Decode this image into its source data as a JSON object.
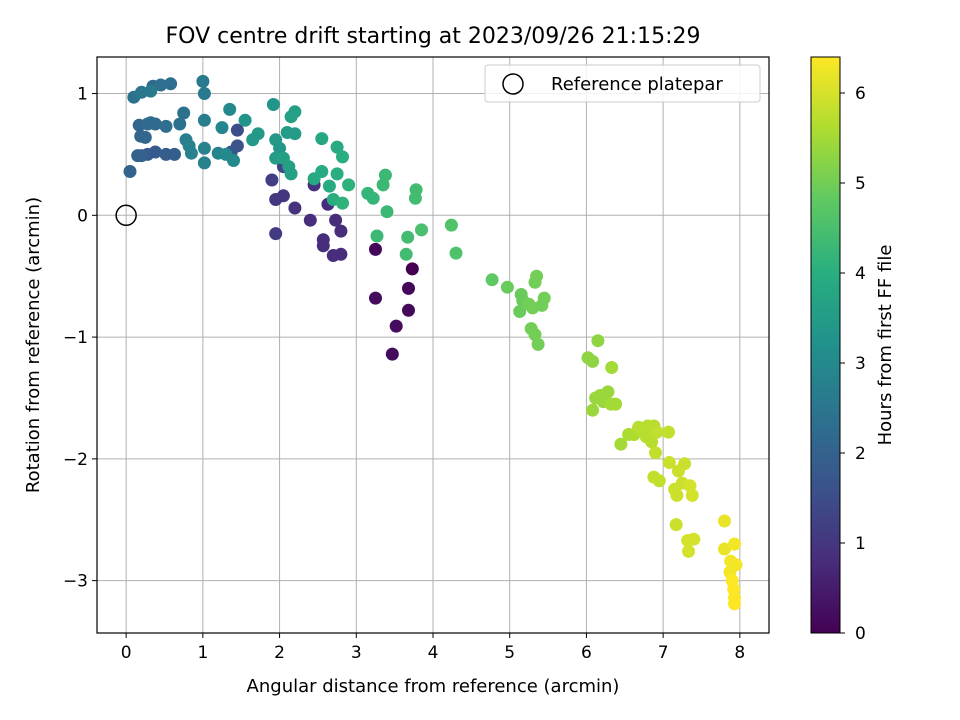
{
  "chart_data": {
    "type": "scatter",
    "title": "FOV centre drift starting at 2023/09/26 21:15:29",
    "xlabel": "Angular distance from reference (arcmin)",
    "ylabel": "Rotation from reference (arcmin)",
    "xlim": [
      -0.38,
      8.38
    ],
    "ylim": [
      -3.43,
      1.3
    ],
    "xticks": [
      0,
      1,
      2,
      3,
      4,
      5,
      6,
      7,
      8
    ],
    "yticks": [
      1,
      0,
      -1,
      -2,
      -3
    ],
    "ytick_labels": [
      "1",
      "0",
      "−1",
      "−2",
      "−3"
    ],
    "grid": true,
    "legend": {
      "position": "top-right",
      "entries": [
        {
          "label": "Reference platepar",
          "marker": "open-circle"
        }
      ]
    },
    "reference_point": {
      "x": 0,
      "y": 0
    },
    "colorbar": {
      "label": "Hours from first FF file",
      "range": [
        0,
        6.4
      ],
      "ticks": [
        0,
        1,
        2,
        3,
        4,
        5,
        6
      ],
      "colormap": "viridis"
    },
    "series": [
      {
        "color_by": "hours",
        "points": [
          [
            3.73,
            -0.44,
            0.0
          ],
          [
            3.68,
            -0.6,
            0.1
          ],
          [
            3.68,
            -0.78,
            0.15
          ],
          [
            3.25,
            -0.28,
            0.1
          ],
          [
            3.25,
            -0.68,
            0.2
          ],
          [
            3.52,
            -0.91,
            0.2
          ],
          [
            3.47,
            -1.14,
            0.2
          ],
          [
            2.8,
            -0.13,
            0.8
          ],
          [
            2.8,
            -0.32,
            0.8
          ],
          [
            2.7,
            -0.33,
            0.8
          ],
          [
            2.73,
            -0.04,
            0.8
          ],
          [
            2.57,
            -0.2,
            0.8
          ],
          [
            2.57,
            -0.25,
            0.8
          ],
          [
            2.63,
            0.09,
            0.8
          ],
          [
            2.4,
            -0.04,
            0.8
          ],
          [
            2.2,
            0.06,
            0.9
          ],
          [
            2.45,
            0.25,
            0.9
          ],
          [
            1.95,
            0.13,
            1.0
          ],
          [
            2.05,
            0.16,
            1.0
          ],
          [
            1.95,
            -0.15,
            1.1
          ],
          [
            1.9,
            0.29,
            1.2
          ],
          [
            2.05,
            0.4,
            1.3
          ],
          [
            1.45,
            0.7,
            1.5
          ],
          [
            1.45,
            0.57,
            1.6
          ],
          [
            1.37,
            0.52,
            1.7
          ],
          [
            0.28,
            0.5,
            1.8
          ],
          [
            0.38,
            0.52,
            1.8
          ],
          [
            0.52,
            0.5,
            1.9
          ],
          [
            0.63,
            0.5,
            1.9
          ],
          [
            0.15,
            0.49,
            2.0
          ],
          [
            0.2,
            0.49,
            2.0
          ],
          [
            0.05,
            0.36,
            2.0
          ],
          [
            0.19,
            0.65,
            2.1
          ],
          [
            0.25,
            0.64,
            2.1
          ],
          [
            0.17,
            0.74,
            2.1
          ],
          [
            0.28,
            0.75,
            2.2
          ],
          [
            0.32,
            0.76,
            2.2
          ],
          [
            0.38,
            0.75,
            2.2
          ],
          [
            0.52,
            0.73,
            2.3
          ],
          [
            0.7,
            0.75,
            2.4
          ],
          [
            0.35,
            1.06,
            2.2
          ],
          [
            0.45,
            1.07,
            2.3
          ],
          [
            0.58,
            1.08,
            2.3
          ],
          [
            0.75,
            0.84,
            2.4
          ],
          [
            0.1,
            0.97,
            2.4
          ],
          [
            0.2,
            1.01,
            2.5
          ],
          [
            0.32,
            1.02,
            2.6
          ],
          [
            1.0,
            1.1,
            2.6
          ],
          [
            1.02,
            1.0,
            2.6
          ],
          [
            1.02,
            0.78,
            2.7
          ],
          [
            1.02,
            0.55,
            2.8
          ],
          [
            1.02,
            0.43,
            2.8
          ],
          [
            0.78,
            0.62,
            2.7
          ],
          [
            0.82,
            0.57,
            2.8
          ],
          [
            0.85,
            0.51,
            2.8
          ],
          [
            1.25,
            0.72,
            2.9
          ],
          [
            1.2,
            0.51,
            2.9
          ],
          [
            1.3,
            0.5,
            3.0
          ],
          [
            1.4,
            0.45,
            3.0
          ],
          [
            1.35,
            0.87,
            3.0
          ],
          [
            1.55,
            0.78,
            3.3
          ],
          [
            1.65,
            0.62,
            3.4
          ],
          [
            1.72,
            0.67,
            3.4
          ],
          [
            1.92,
            0.91,
            3.3
          ],
          [
            1.95,
            0.62,
            3.4
          ],
          [
            2.0,
            0.55,
            3.4
          ],
          [
            1.95,
            0.47,
            3.5
          ],
          [
            2.05,
            0.47,
            3.6
          ],
          [
            2.12,
            0.4,
            3.6
          ],
          [
            2.15,
            0.34,
            3.6
          ],
          [
            2.1,
            0.68,
            3.5
          ],
          [
            2.2,
            0.67,
            3.5
          ],
          [
            2.15,
            0.81,
            3.6
          ],
          [
            2.2,
            0.85,
            3.6
          ],
          [
            2.55,
            0.63,
            3.8
          ],
          [
            2.45,
            0.3,
            3.9
          ],
          [
            2.55,
            0.36,
            3.9
          ],
          [
            2.65,
            0.24,
            3.9
          ],
          [
            2.7,
            0.13,
            4.0
          ],
          [
            2.75,
            0.56,
            3.9
          ],
          [
            2.82,
            0.48,
            4.0
          ],
          [
            2.75,
            0.34,
            4.0
          ],
          [
            2.82,
            0.1,
            4.1
          ],
          [
            2.9,
            0.25,
            4.1
          ],
          [
            3.15,
            0.18,
            4.2
          ],
          [
            3.22,
            0.14,
            4.2
          ],
          [
            3.35,
            0.25,
            4.3
          ],
          [
            3.38,
            0.33,
            4.3
          ],
          [
            3.4,
            0.03,
            4.3
          ],
          [
            3.27,
            -0.17,
            4.3
          ],
          [
            3.65,
            -0.32,
            4.4
          ],
          [
            3.67,
            -0.18,
            4.4
          ],
          [
            3.77,
            0.14,
            4.4
          ],
          [
            3.78,
            0.21,
            4.4
          ],
          [
            3.85,
            -0.12,
            4.5
          ],
          [
            4.24,
            -0.08,
            4.6
          ],
          [
            4.3,
            -0.31,
            4.6
          ],
          [
            4.77,
            -0.53,
            4.8
          ],
          [
            4.97,
            -0.59,
            4.9
          ],
          [
            5.15,
            -0.65,
            4.9
          ],
          [
            5.17,
            -0.7,
            4.9
          ],
          [
            5.13,
            -0.79,
            4.9
          ],
          [
            5.25,
            -0.73,
            5.0
          ],
          [
            5.3,
            -0.76,
            5.0
          ],
          [
            5.28,
            -0.93,
            5.0
          ],
          [
            5.33,
            -0.98,
            5.0
          ],
          [
            5.37,
            -1.06,
            5.0
          ],
          [
            5.33,
            -0.55,
            5.0
          ],
          [
            5.35,
            -0.5,
            5.0
          ],
          [
            5.45,
            -0.68,
            5.0
          ],
          [
            5.42,
            -0.74,
            5.0
          ],
          [
            6.02,
            -1.17,
            5.3
          ],
          [
            6.08,
            -1.2,
            5.3
          ],
          [
            6.15,
            -1.03,
            5.3
          ],
          [
            6.08,
            -1.6,
            5.4
          ],
          [
            6.12,
            -1.5,
            5.4
          ],
          [
            6.18,
            -1.48,
            5.4
          ],
          [
            6.22,
            -1.53,
            5.4
          ],
          [
            6.28,
            -1.45,
            5.4
          ],
          [
            6.32,
            -1.55,
            5.5
          ],
          [
            6.38,
            -1.55,
            5.5
          ],
          [
            6.33,
            -1.25,
            5.5
          ],
          [
            6.45,
            -1.88,
            5.5
          ],
          [
            6.55,
            -1.8,
            5.6
          ],
          [
            6.62,
            -1.8,
            5.6
          ],
          [
            6.68,
            -1.74,
            5.7
          ],
          [
            6.73,
            -1.76,
            5.7
          ],
          [
            6.78,
            -1.82,
            5.7
          ],
          [
            6.8,
            -1.73,
            5.7
          ],
          [
            6.85,
            -1.86,
            5.7
          ],
          [
            6.88,
            -1.73,
            5.7
          ],
          [
            6.92,
            -1.78,
            5.8
          ],
          [
            6.9,
            -1.95,
            5.8
          ],
          [
            6.88,
            -2.15,
            5.8
          ],
          [
            6.95,
            -2.18,
            5.8
          ],
          [
            7.07,
            -1.78,
            5.8
          ],
          [
            7.08,
            -2.03,
            5.9
          ],
          [
            7.15,
            -2.25,
            5.9
          ],
          [
            7.18,
            -2.3,
            5.9
          ],
          [
            7.25,
            -2.2,
            5.9
          ],
          [
            7.28,
            -2.04,
            5.9
          ],
          [
            7.2,
            -2.1,
            5.9
          ],
          [
            7.17,
            -2.54,
            5.9
          ],
          [
            7.35,
            -2.22,
            6.0
          ],
          [
            7.38,
            -2.3,
            6.0
          ],
          [
            7.32,
            -2.67,
            6.0
          ],
          [
            7.4,
            -2.66,
            6.0
          ],
          [
            7.33,
            -2.76,
            6.0
          ],
          [
            7.8,
            -2.51,
            6.2
          ],
          [
            7.8,
            -2.74,
            6.2
          ],
          [
            7.88,
            -2.84,
            6.3
          ],
          [
            7.87,
            -2.93,
            6.3
          ],
          [
            7.93,
            -2.7,
            6.3
          ],
          [
            7.95,
            -2.87,
            6.3
          ],
          [
            7.9,
            -3.0,
            6.4
          ],
          [
            7.92,
            -3.07,
            6.4
          ],
          [
            7.93,
            -3.14,
            6.4
          ],
          [
            7.93,
            -3.19,
            6.4
          ]
        ]
      }
    ]
  }
}
